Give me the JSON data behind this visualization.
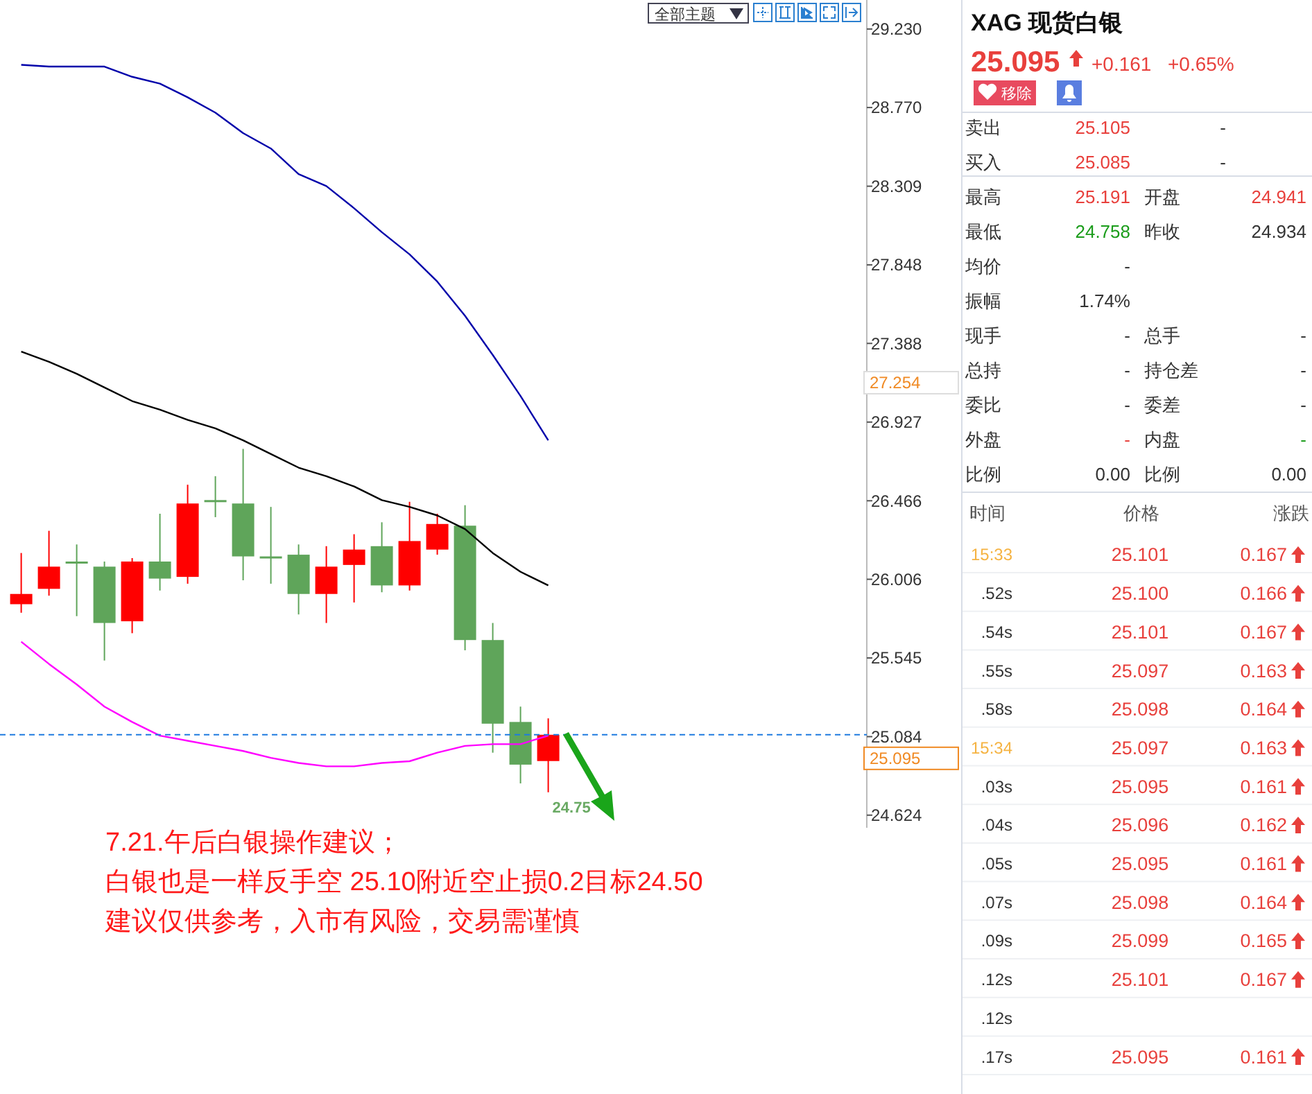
{
  "chart_data": [
    {
      "type": "candlestick",
      "categories": [
        null,
        null,
        null,
        null,
        null,
        null,
        null,
        null,
        null,
        null,
        null,
        null,
        null,
        null,
        null,
        null,
        null,
        null,
        null,
        null
      ],
      "ohlc": [
        [
          25.86,
          26.16,
          25.81,
          25.92
        ],
        [
          25.95,
          26.29,
          25.91,
          26.08
        ],
        [
          26.11,
          26.21,
          25.79,
          26.1
        ],
        [
          26.08,
          26.11,
          25.53,
          25.75
        ],
        [
          25.76,
          26.13,
          25.69,
          26.11
        ],
        [
          26.11,
          26.39,
          25.94,
          26.01
        ],
        [
          26.02,
          26.56,
          25.98,
          26.45
        ],
        [
          26.47,
          26.61,
          26.37,
          26.46
        ],
        [
          26.45,
          26.77,
          26.0,
          26.14
        ],
        [
          26.14,
          26.43,
          25.98,
          26.13
        ],
        [
          26.15,
          26.21,
          25.8,
          25.92
        ],
        [
          25.92,
          26.2,
          25.75,
          26.08
        ],
        [
          26.09,
          26.27,
          25.87,
          26.18
        ],
        [
          26.2,
          26.34,
          25.93,
          25.97
        ],
        [
          25.97,
          26.46,
          25.94,
          26.23
        ],
        [
          26.18,
          26.39,
          26.15,
          26.33
        ],
        [
          26.32,
          26.44,
          25.59,
          25.65
        ],
        [
          25.65,
          25.75,
          24.99,
          25.16
        ],
        [
          25.17,
          25.26,
          24.81,
          24.92
        ],
        [
          24.941,
          25.191,
          24.758,
          25.095
        ]
      ],
      "colors": [
        "#ff0000",
        "#ff0000",
        "#5fa55a",
        "#5fa55a",
        "#ff0000",
        "#5fa55a",
        "#ff0000",
        "#5fa55a",
        "#5fa55a",
        "#5fa55a",
        "#5fa55a",
        "#ff0000",
        "#ff0000",
        "#5fa55a",
        "#ff0000",
        "#ff0000",
        "#5fa55a",
        "#5fa55a",
        "#5fa55a",
        "#ff0000"
      ],
      "series": [
        {
          "type": "line",
          "color": "#0000aa",
          "values": [
            29.02,
            29.01,
            29.01,
            29.01,
            28.95,
            28.91,
            28.83,
            28.74,
            28.62,
            28.53,
            28.38,
            28.31,
            28.18,
            28.04,
            27.91,
            27.75,
            27.55,
            27.32,
            27.08,
            26.82
          ]
        },
        {
          "type": "line",
          "color": "#000000",
          "values": [
            27.34,
            27.28,
            27.21,
            27.13,
            27.05,
            27.0,
            26.94,
            26.89,
            26.82,
            26.74,
            26.66,
            26.61,
            26.55,
            26.47,
            26.43,
            26.38,
            26.3,
            26.16,
            26.05,
            25.97
          ]
        },
        {
          "type": "line",
          "color": "#ff00ff",
          "values": [
            25.64,
            25.51,
            25.39,
            25.26,
            25.17,
            25.09,
            25.06,
            25.03,
            25.0,
            24.96,
            24.93,
            24.91,
            24.91,
            24.93,
            24.94,
            24.99,
            25.03,
            25.04,
            25.04,
            25.09
          ]
        }
      ],
      "ylim": [
        24.55,
        29.4
      ],
      "yticks": [
        {
          "value": 29.23,
          "label": "29.230"
        },
        {
          "value": 28.77,
          "label": "28.770"
        },
        28.309,
        27.848,
        27.388,
        26.927,
        26.466,
        26.006,
        25.545,
        25.084,
        24.624
      ],
      "ref_lines": [
        {
          "axis": "y",
          "value": 25.095,
          "label": "25.095",
          "color": "#1e7be0",
          "line_style": "dashed"
        }
      ],
      "annotations": [
        "27.254",
        "24.75",
        "7.21.午后白银操作建议；",
        "白银也是一样反手空 25.10附近空止损0.2目标24.50",
        "建议仅供参考，入市有风险，交易需谨慎",
        "全部主题"
      ]
    },
    {
      "type": "other",
      "title": "XAG 现货白银",
      "annotations": [
        "25.095",
        "+0.161",
        "+0.65%",
        "移除",
        "卖出",
        "25.105",
        "-",
        "买入",
        "25.085",
        "-",
        "最高",
        "25.191",
        "开盘",
        "24.941",
        "最低",
        "24.758",
        "昨收",
        "24.934",
        "均价",
        "-",
        "振幅",
        "1.74%",
        "现手",
        "-",
        "总手",
        "-",
        "总持",
        "-",
        "持仓差",
        "-",
        "委比",
        "-",
        "委差",
        "-",
        "外盘",
        "-",
        "内盘",
        "-",
        "比例",
        "0.00",
        "比例",
        "0.00",
        "时间",
        "价格",
        "涨跌",
        "15:33",
        "25.101",
        "0.167",
        ".52s",
        "25.100",
        "0.166",
        ".54s",
        "25.101",
        "0.167",
        ".55s",
        "25.097",
        "0.163",
        ".58s",
        "25.098",
        "0.164",
        "15:34",
        "25.097",
        "0.163",
        ".03s",
        "25.095",
        "0.161",
        ".04s",
        "25.096",
        "0.162",
        ".05s",
        "25.095",
        "0.161",
        ".07s",
        "25.098",
        "0.164",
        ".09s",
        "25.099",
        "0.165",
        ".12s",
        "25.101",
        "0.167",
        ".12s",
        ".17s",
        "25.095",
        "0.161"
      ],
      "colors": [
        "#e8403c",
        "#e8403c",
        "#e8403c",
        "#ffffff",
        "#333333",
        "#e8403c",
        "#333333",
        "#333333",
        "#e8403c",
        "#333333",
        "#333333",
        "#e8403c",
        "#333333",
        "#e8403c",
        "#333333",
        "#1a9c1a",
        "#333333",
        "#333333",
        "#333333",
        "#333333",
        "#333333",
        "#333333",
        "#333333",
        "#333333",
        "#333333",
        "#333333",
        "#333333",
        "#333333",
        "#333333",
        "#333333",
        "#333333",
        "#333333",
        "#333333",
        "#333333",
        "#333333",
        "#e8403c",
        "#333333",
        "#1a9c1a",
        "#333333",
        "#333333",
        "#333333",
        "#333333",
        "#555555",
        "#555555",
        "#555555",
        "#f5b342",
        "#e8403c",
        "#e8403c",
        "#333333",
        "#e8403c",
        "#e8403c",
        "#333333",
        "#e8403c",
        "#e8403c",
        "#333333",
        "#e8403c",
        "#e8403c",
        "#333333",
        "#e8403c",
        "#e8403c",
        "#f5b342",
        "#e8403c",
        "#e8403c",
        "#333333",
        "#e8403c",
        "#e8403c",
        "#333333",
        "#e8403c",
        "#e8403c",
        "#333333",
        "#e8403c",
        "#e8403c",
        "#333333",
        "#e8403c",
        "#e8403c",
        "#333333",
        "#e8403c",
        "#e8403c",
        "#333333",
        "#e8403c",
        "#e8403c",
        "#333333",
        "#333333",
        "#e8403c",
        "#e8403c"
      ]
    }
  ]
}
